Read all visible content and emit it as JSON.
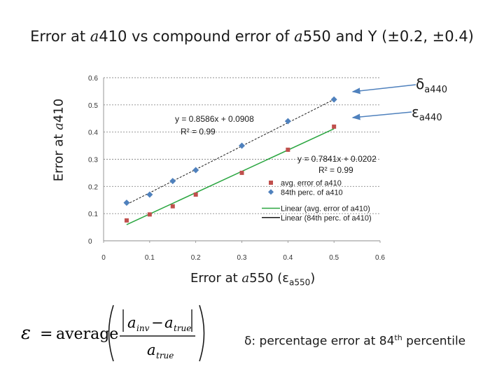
{
  "slide": {
    "title_part1": "Error at ",
    "title_var1": "a",
    "title_part2": "410 vs compound error of ",
    "title_var2": "a",
    "title_part3": "550 and Y (±0.2, ±0.4)",
    "delta_symbol": "δ",
    "delta_sub": "a440",
    "eps_symbol": "ε",
    "eps_sub": "a440",
    "ylabel_prefix": "Error at ",
    "ylabel_var": "a",
    "ylabel_suffix": "410",
    "xlabel_prefix": "Error at ",
    "xlabel_var": "a",
    "xlabel_mid": "550 (ε",
    "xlabel_sub": "a550",
    "xlabel_end": ")",
    "formula": {
      "eps": "ε",
      "eq": "=",
      "avg": "average",
      "a_inv": "a",
      "inv_sub": "inv",
      "minus": "−",
      "a_true": "a",
      "true_sub": "true",
      "a_den": "a",
      "den_sub": "true"
    },
    "note_text": "δ: percentage error at 84",
    "note_sup": "th",
    "note_end": " percentile"
  },
  "chart_data": {
    "type": "scatter",
    "xlim": [
      0,
      0.6
    ],
    "ylim": [
      0,
      0.6
    ],
    "x_ticks": [
      "0",
      "0.1",
      "0.2",
      "0.3",
      "0.4",
      "0.5",
      "0.6"
    ],
    "y_ticks": [
      "0",
      "0.1",
      "0.2",
      "0.3",
      "0.4",
      "0.5",
      "0.6"
    ],
    "grid": true,
    "legend_position": "bottom-right",
    "series": [
      {
        "name": "avg. error of a410",
        "marker": "square",
        "color": "#c0504d",
        "points": [
          [
            0.05,
            0.075
          ],
          [
            0.1,
            0.097
          ],
          [
            0.15,
            0.127
          ],
          [
            0.2,
            0.17
          ],
          [
            0.3,
            0.25
          ],
          [
            0.4,
            0.335
          ],
          [
            0.5,
            0.42
          ]
        ]
      },
      {
        "name": "84th perc. of a410",
        "marker": "diamond",
        "color": "#4f81bd",
        "points": [
          [
            0.05,
            0.14
          ],
          [
            0.1,
            0.17
          ],
          [
            0.15,
            0.22
          ],
          [
            0.2,
            0.26
          ],
          [
            0.3,
            0.35
          ],
          [
            0.4,
            0.44
          ],
          [
            0.5,
            0.52
          ]
        ]
      }
    ],
    "trendlines": [
      {
        "name": "Linear (avg. error of a410)",
        "color": "#2aa640",
        "slope": 0.7841,
        "intercept": 0.0202,
        "x_range": [
          0.05,
          0.5
        ],
        "equation": "y = 0.7841x + 0.0202",
        "r2": "R² = 0.99"
      },
      {
        "name": "Linear (84th perc. of a410)",
        "color": "#1a1a1a",
        "dashed": true,
        "slope": 0.8586,
        "intercept": 0.0908,
        "x_range": [
          0.05,
          0.5
        ],
        "equation": "y = 0.8586x + 0.0908",
        "r2": "R² = 0.99"
      }
    ]
  }
}
